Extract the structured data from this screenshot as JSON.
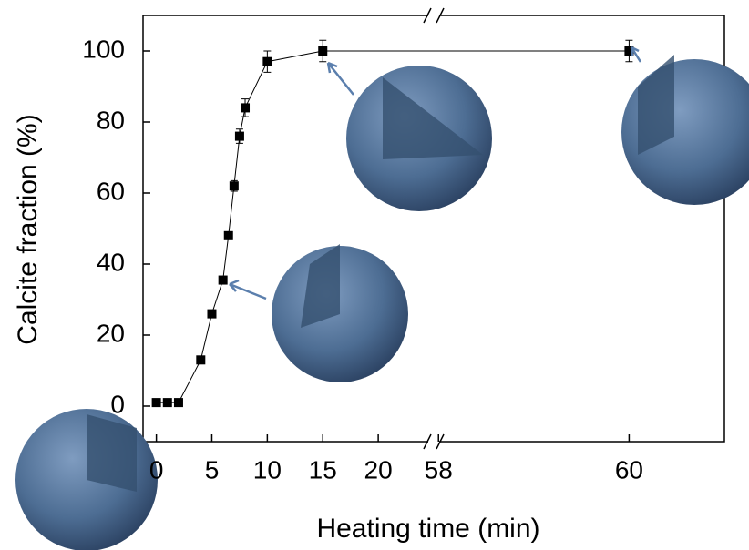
{
  "chart_data": {
    "type": "line",
    "ylabel": "Calcite fraction (%)",
    "xlabel": "Heating time (min)",
    "x": [
      0,
      1,
      2,
      4,
      5,
      6,
      6.5,
      7,
      7.5,
      8,
      10,
      15,
      60
    ],
    "values": [
      1,
      1,
      1,
      13,
      26,
      35.5,
      48,
      62,
      76,
      84,
      97,
      100,
      100
    ],
    "errors": [
      0,
      0,
      0,
      0,
      0,
      0,
      0,
      1.5,
      2,
      2.5,
      3,
      3,
      3
    ],
    "color": "#000000",
    "ylim": [
      -10,
      110
    ],
    "yticks": [
      0,
      20,
      40,
      60,
      80,
      100
    ],
    "x_segments": [
      {
        "xlim": [
          -1.2,
          25
        ],
        "xticks": [
          0,
          5,
          10,
          15,
          20
        ]
      },
      {
        "xlim": [
          57.95,
          61
        ],
        "xticks": [
          58,
          60
        ]
      }
    ]
  }
}
